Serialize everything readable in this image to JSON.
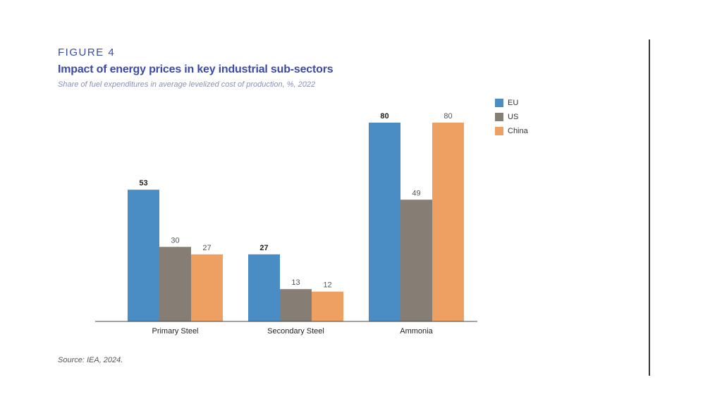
{
  "figure_label": "FIGURE 4",
  "source": "Source: IEA, 2024.",
  "colors": {
    "title": "#3b4aa6",
    "EU": "#4a8cc4",
    "US": "#867e74",
    "China": "#eda062"
  },
  "chart_data": {
    "type": "bar",
    "title": "Impact of energy prices in key industrial sub-sectors",
    "subtitle": "Share of fuel expenditures in average levelized cost of production, %, 2022",
    "categories": [
      "Primary Steel",
      "Secondary Steel",
      "Ammonia"
    ],
    "series": [
      {
        "name": "EU",
        "values": [
          53,
          27,
          80
        ]
      },
      {
        "name": "US",
        "values": [
          30,
          13,
          49
        ]
      },
      {
        "name": "China",
        "values": [
          27,
          12,
          80
        ]
      }
    ],
    "ylim": [
      0,
      80
    ],
    "grid": false,
    "legend_position": "top-right"
  }
}
